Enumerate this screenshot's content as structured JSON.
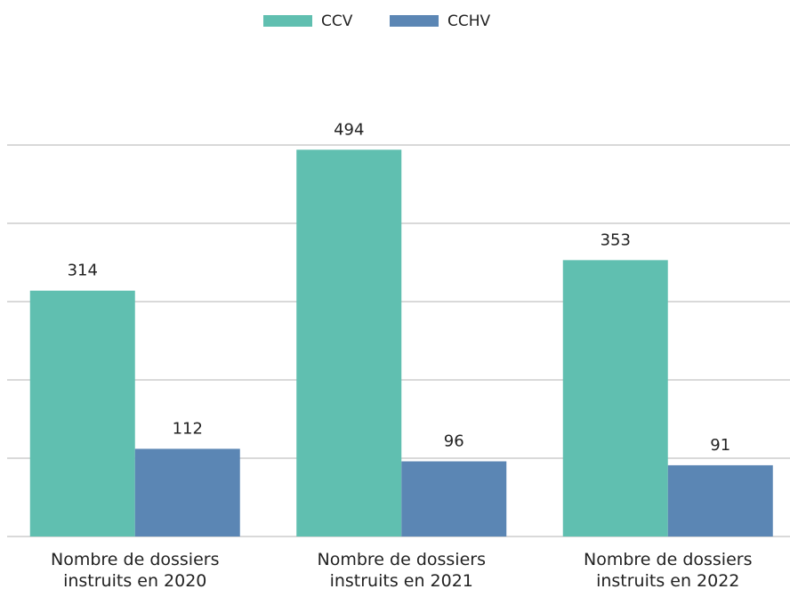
{
  "chart_data": {
    "type": "bar",
    "categories": [
      "Nombre de dossiers instruits en 2020",
      "Nombre de dossiers instruits en 2021",
      "Nombre de dossiers instruits en 2022"
    ],
    "series": [
      {
        "name": "CCV",
        "color": "#60bfb0",
        "values": [
          314,
          494,
          353
        ]
      },
      {
        "name": "CCHV",
        "color": "#5b86b4",
        "values": [
          112,
          96,
          91
        ]
      }
    ],
    "ylim": [
      0,
      500
    ],
    "yticks": [
      0,
      100,
      200,
      300,
      400,
      500
    ],
    "grid": true,
    "legend": "top"
  }
}
